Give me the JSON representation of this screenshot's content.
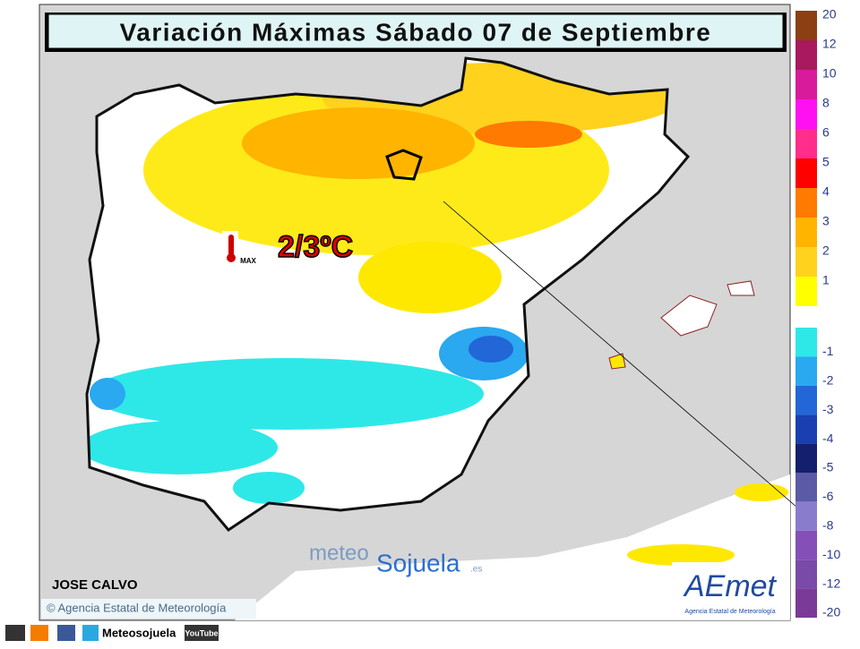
{
  "header": {
    "title": "Variación Máximas Sábado 07 de Septiembre"
  },
  "annotation": {
    "value": "2/3ºC",
    "icon_label": "MAX"
  },
  "legend": {
    "positive": [
      {
        "label": "20",
        "color": "#8b3f12"
      },
      {
        "label": "12",
        "color": "#a8195e"
      },
      {
        "label": "10",
        "color": "#d81b9a"
      },
      {
        "label": "8",
        "color": "#ff10f0"
      },
      {
        "label": "6",
        "color": "#ff2d8c"
      },
      {
        "label": "5",
        "color": "#ff0000"
      },
      {
        "label": "4",
        "color": "#ff7a00"
      },
      {
        "label": "3",
        "color": "#ffb400"
      },
      {
        "label": "2",
        "color": "#ffd21e"
      },
      {
        "label": "1",
        "color": "#ffff00"
      }
    ],
    "negative": [
      {
        "label": "-1",
        "color": "#2ee8e8"
      },
      {
        "label": "-2",
        "color": "#2aa8f0"
      },
      {
        "label": "-3",
        "color": "#2266d8"
      },
      {
        "label": "-4",
        "color": "#1a3fb0"
      },
      {
        "label": "-5",
        "color": "#14206e"
      },
      {
        "label": "-6",
        "color": "#5b5aa6"
      },
      {
        "label": "-8",
        "color": "#8a7ccc"
      },
      {
        "label": "-10",
        "color": "#8450b8"
      },
      {
        "label": "-12",
        "color": "#7a4aa8"
      },
      {
        "label": "-20",
        "color": "#7a3a98"
      }
    ]
  },
  "author": "JOSE CALVO",
  "copyright": "© Agencia Estatal de Meteorología",
  "watermark": {
    "part1": "meteo",
    "part2": "Sojuela",
    "suffix": ".es"
  },
  "logo": {
    "name": "AEmet",
    "subtitle": "Agencia Estatal de Meteorología"
  },
  "footer": {
    "handle": "Meteosojuela",
    "video": "YouTube"
  }
}
